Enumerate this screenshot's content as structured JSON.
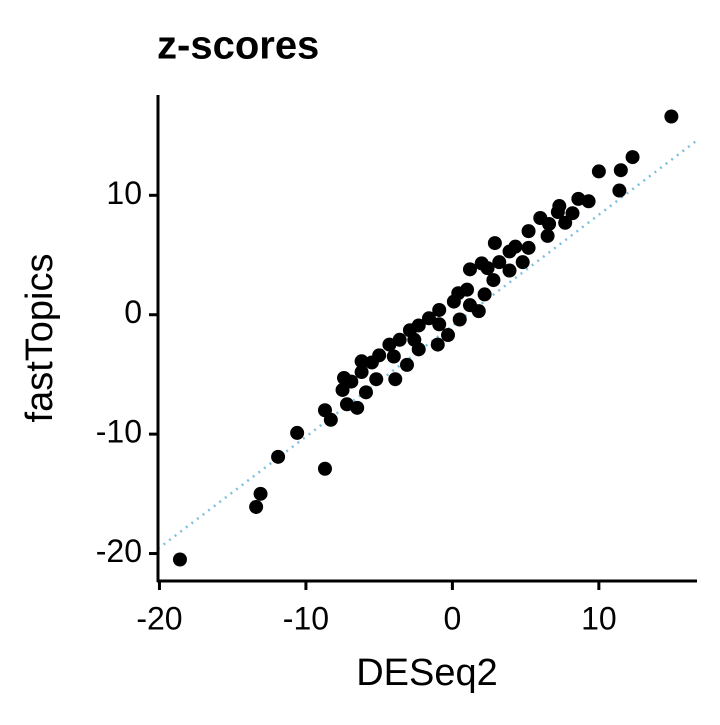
{
  "chart_data": {
    "type": "scatter",
    "title": "z-scores",
    "x_label": "DESeq2",
    "y_label": "fastTopics",
    "xlim": [
      -20.1,
      16.7
    ],
    "ylim": [
      -22.3,
      18.4
    ],
    "xticks": [
      -20,
      -10,
      0,
      10
    ],
    "yticks": [
      -20,
      -10,
      0,
      10
    ],
    "grid": false,
    "color": "#000000",
    "reference_line": {
      "x": [
        -20.1,
        16.7
      ],
      "y": [
        -19.6,
        14.6
      ],
      "color": "#7fbfdf"
    },
    "x": [
      14.95,
      10.0,
      12.3,
      11.5,
      11.4,
      9.3,
      8.6,
      7.3,
      8.2,
      7.2,
      6.0,
      6.6,
      7.7,
      5.2,
      6.5,
      2.9,
      4.3,
      3.9,
      5.2,
      4.8,
      3.2,
      2.4,
      1.2,
      2.0,
      2.8,
      3.9,
      1.0,
      2.2,
      0.4,
      0.1,
      -0.9,
      -1.6,
      -2.3,
      -2.9,
      -3.6,
      -4.3,
      -5.0,
      -5.5,
      -6.2,
      -6.9,
      -7.5,
      -8.7,
      -8.3,
      -7.2,
      -6.5,
      -5.9,
      -5.2,
      -3.9,
      -3.1,
      -2.3,
      -1.0,
      -0.3,
      0.5,
      1.2,
      1.8,
      -8.7,
      -10.6,
      -11.9,
      -13.1,
      -13.4,
      -18.6,
      -7.4,
      -6.2,
      -4.0,
      -2.6,
      -0.9
    ],
    "values": [
      16.6,
      12.0,
      13.2,
      12.1,
      10.4,
      9.5,
      9.7,
      9.1,
      8.5,
      8.6,
      8.1,
      7.6,
      7.7,
      7.0,
      6.6,
      6.0,
      5.7,
      5.3,
      5.6,
      4.4,
      4.4,
      3.9,
      3.8,
      4.3,
      2.9,
      3.7,
      2.1,
      1.7,
      1.8,
      1.1,
      0.4,
      -0.3,
      -0.9,
      -1.3,
      -2.1,
      -2.5,
      -3.4,
      -4.0,
      -4.8,
      -5.6,
      -6.3,
      -8.0,
      -8.8,
      -7.5,
      -7.8,
      -6.5,
      -5.4,
      -5.4,
      -4.2,
      -2.9,
      -2.5,
      -1.7,
      -0.4,
      0.8,
      0.3,
      -12.9,
      -9.9,
      -11.9,
      -15.0,
      -16.1,
      -20.5,
      -5.3,
      -3.9,
      -3.5,
      -2.1,
      -0.8
    ]
  }
}
